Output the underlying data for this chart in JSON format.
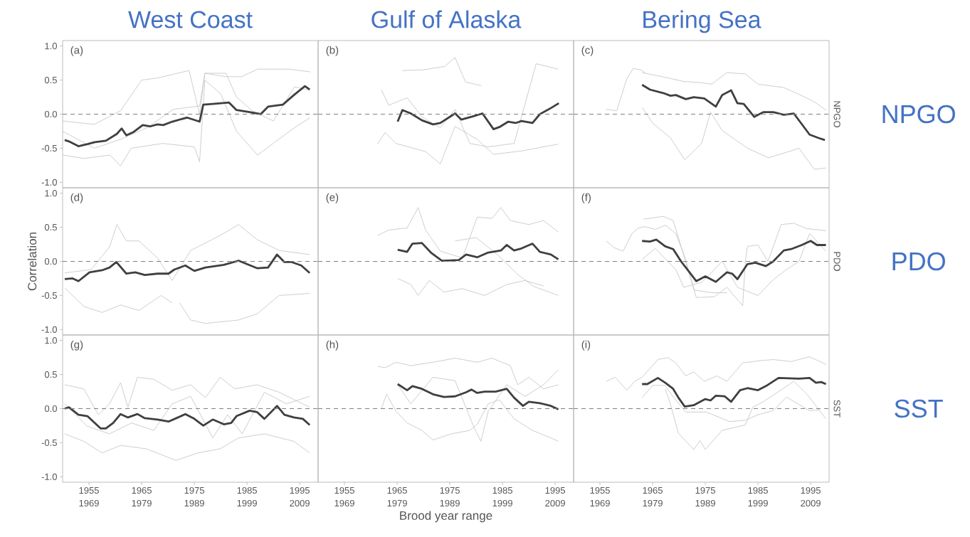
{
  "chart_data": [
    {
      "type": "line",
      "title": "West Coast",
      "annotations": [
        "(a)"
      ],
      "tick_labels": "y",
      "xlim": [
        1950,
        1998.5
      ],
      "ylim": [
        -1.08,
        1.08
      ],
      "line_style": "solid",
      "marker": "none",
      "yticks": [
        {
          "value": -1,
          "label": "-1.0"
        },
        {
          "value": -0.5,
          "label": "-0.5"
        },
        {
          "value": 0,
          "label": "0.0"
        },
        {
          "value": 0.5,
          "label": "0.5"
        },
        {
          "value": 1,
          "label": "1.0"
        }
      ],
      "ref_lines": [
        {
          "axis": "y",
          "value": 0,
          "color": "#808080",
          "line_style": "dashed"
        }
      ],
      "series": [
        {
          "color": "#c8c8c8",
          "x": [
            1950,
            1956,
            1961,
            1965,
            1968,
            1974,
            1976,
            1977,
            1981,
            1983,
            1986,
            1990,
            1994,
            1997
          ],
          "values": [
            -0.1,
            -0.15,
            0.05,
            0.5,
            0.53,
            0.64,
            0.0,
            0.6,
            0.6,
            0.25,
            0.05,
            -0.1,
            0.4,
            0.35
          ]
        },
        {
          "color": "#c8c8c8",
          "x": [
            1950,
            1954,
            1959,
            1961,
            1963,
            1969,
            1975,
            1976,
            1977,
            1980,
            1983,
            1987,
            1991,
            1994,
            1997
          ],
          "values": [
            -0.6,
            -0.65,
            -0.6,
            -0.76,
            -0.5,
            -0.43,
            -0.48,
            -0.7,
            0.5,
            0.3,
            -0.25,
            -0.6,
            -0.37,
            -0.2,
            -0.05
          ]
        },
        {
          "color": "#c8c8c8",
          "x": [
            1950,
            1956,
            1961,
            1966,
            1971,
            1976,
            1977,
            1981,
            1984,
            1987,
            1993,
            1997
          ],
          "values": [
            -0.25,
            -0.5,
            -0.37,
            -0.2,
            0.07,
            0.12,
            0.6,
            0.55,
            0.55,
            0.66,
            0.66,
            0.62
          ]
        },
        {
          "color": "#3f3f3f",
          "x": [
            1950.4,
            1951.2,
            1953.0,
            1954.7,
            1956.1,
            1958.2,
            1960.3,
            1961.2,
            1962.1,
            1963.5,
            1965.2,
            1966.6,
            1968.0,
            1969.1,
            1970.8,
            1973.6,
            1976.0,
            1976.7,
            1978.5,
            1981.6,
            1983.0,
            1985.5,
            1987.6,
            1989.0,
            1991.8,
            1993.9,
            1996.0,
            1996.9
          ],
          "values": [
            -0.38,
            -0.4,
            -0.47,
            -0.44,
            -0.41,
            -0.39,
            -0.29,
            -0.21,
            -0.31,
            -0.26,
            -0.16,
            -0.18,
            -0.15,
            -0.16,
            -0.11,
            -0.05,
            -0.11,
            0.14,
            0.15,
            0.17,
            0.06,
            0.03,
            0.0,
            0.11,
            0.14,
            0.28,
            0.41,
            0.36
          ]
        }
      ]
    },
    {
      "type": "line",
      "title": "Gulf of Alaska",
      "annotations": [
        "(b)"
      ],
      "tick_labels": false,
      "xlim": [
        1950,
        1998.5
      ],
      "ylim": [
        -1.08,
        1.08
      ],
      "line_style": "solid",
      "marker": "none",
      "ref_lines": [
        {
          "axis": "y",
          "value": 0,
          "color": "#808080",
          "line_style": "dashed"
        }
      ],
      "series": [
        {
          "color": "#c8c8c8",
          "x": [
            1966,
            1970,
            1974,
            1976,
            1978,
            1981
          ],
          "values": [
            0.64,
            0.65,
            0.7,
            0.83,
            0.47,
            0.42
          ]
        },
        {
          "color": "#c8c8c8",
          "x": [
            1962,
            1963.4,
            1966.9,
            1969.7,
            1973.2,
            1976,
            1978.8,
            1982.3,
            1987.2,
            1991.4,
            1995.6
          ],
          "values": [
            0.36,
            0.13,
            0.24,
            -0.04,
            -0.2,
            0.07,
            -0.43,
            -0.48,
            -0.43,
            0.74,
            0.66
          ]
        },
        {
          "color": "#c8c8c8",
          "x": [
            1961.3,
            1962.7,
            1964.8,
            1970.4,
            1973.2,
            1976,
            1980.2,
            1983.3,
            1988.6,
            1995.6
          ],
          "values": [
            -0.44,
            -0.27,
            -0.43,
            -0.55,
            -0.73,
            -0.18,
            -0.37,
            -0.59,
            -0.54,
            -0.44
          ]
        },
        {
          "color": "#3f3f3f",
          "x": [
            1965.1,
            1966.0,
            1967.6,
            1969.7,
            1971.8,
            1973.2,
            1976.0,
            1977.2,
            1979.5,
            1981.2,
            1983.3,
            1984.4,
            1986.1,
            1987.5,
            1988.6,
            1990.7,
            1992.1,
            1994.2,
            1995.7
          ],
          "values": [
            -0.11,
            0.06,
            0.01,
            -0.09,
            -0.15,
            -0.13,
            0.01,
            -0.08,
            -0.03,
            0.01,
            -0.22,
            -0.19,
            -0.11,
            -0.13,
            -0.1,
            -0.13,
            0.0,
            0.09,
            0.16
          ]
        }
      ]
    },
    {
      "type": "line",
      "title": "Bering Sea",
      "annotations": [
        "(c)",
        "NPGO"
      ],
      "y2label": "NPGO",
      "tick_labels": false,
      "xlim": [
        1950,
        1998.5
      ],
      "ylim": [
        -1.08,
        1.08
      ],
      "line_style": "solid",
      "marker": "none",
      "ref_lines": [
        {
          "axis": "y",
          "value": 0,
          "color": "#808080",
          "line_style": "dashed"
        }
      ],
      "series": [
        {
          "color": "#c8c8c8",
          "x": [
            1956.2,
            1958.2,
            1960.1,
            1961.3,
            1962.8,
            1963.5
          ],
          "values": [
            0.07,
            0.05,
            0.52,
            0.67,
            0.65,
            0.61
          ]
        },
        {
          "color": "#c8c8c8",
          "x": [
            1963,
            1967.4,
            1970.9,
            1974.3,
            1976.2,
            1979.1,
            1982.6,
            1985,
            1989.9,
            1992.8,
            1995.7,
            1997.9
          ],
          "values": [
            0.61,
            0.54,
            0.48,
            0.46,
            0.44,
            0.61,
            0.59,
            0.44,
            0.39,
            0.29,
            0.18,
            0.06
          ]
        },
        {
          "color": "#c8c8c8",
          "x": [
            1963,
            1965,
            1968.4,
            1971.1,
            1974.3,
            1976,
            1978.2,
            1983,
            1987,
            1990.4,
            1992.8,
            1995.7,
            1997.9
          ],
          "values": [
            0.1,
            -0.13,
            -0.35,
            -0.67,
            -0.43,
            0.03,
            -0.24,
            -0.5,
            -0.64,
            -0.56,
            -0.5,
            -0.81,
            -0.79
          ]
        },
        {
          "color": "#3f3f3f",
          "x": [
            1963.0,
            1964.5,
            1967.0,
            1968.4,
            1969.4,
            1971.3,
            1972.8,
            1974.8,
            1977.0,
            1978.2,
            1979.9,
            1981.1,
            1982.3,
            1984.3,
            1986.0,
            1987.9,
            1989.9,
            1991.8,
            1994.8,
            1996.5,
            1997.7
          ],
          "values": [
            0.43,
            0.36,
            0.31,
            0.27,
            0.28,
            0.22,
            0.25,
            0.23,
            0.11,
            0.28,
            0.35,
            0.16,
            0.15,
            -0.04,
            0.03,
            0.03,
            -0.01,
            0.01,
            -0.3,
            -0.35,
            -0.38
          ]
        }
      ]
    },
    {
      "type": "line",
      "ylabel": "Correlation",
      "annotations": [
        "(d)"
      ],
      "tick_labels": "y",
      "xlim": [
        1950,
        1998.5
      ],
      "ylim": [
        -1.08,
        1.08
      ],
      "line_style": "solid",
      "marker": "none",
      "yticks": [
        {
          "value": -1,
          "label": "-1.0"
        },
        {
          "value": -0.5,
          "label": "-0.5"
        },
        {
          "value": 0,
          "label": "0.0"
        },
        {
          "value": 0.5,
          "label": "0.5"
        },
        {
          "value": 1,
          "label": "1.0"
        }
      ],
      "ref_lines": [
        {
          "axis": "y",
          "value": 0,
          "color": "#808080",
          "line_style": "dashed"
        }
      ],
      "series": [
        {
          "color": "#c8c8c8",
          "x": [
            1950.4,
            1955.4,
            1958.9,
            1960.3,
            1962.1,
            1964.5,
            1968,
            1970.8,
            1974.3,
            1979.9,
            1983.4,
            1986.9,
            1991.1,
            1996.9
          ],
          "values": [
            -0.17,
            -0.12,
            0.21,
            0.54,
            0.3,
            0.3,
            0.05,
            -0.28,
            0.16,
            0.38,
            0.54,
            0.32,
            0.16,
            0.1
          ]
        },
        {
          "color": "#c8c8c8",
          "x": [
            1950.4,
            1954,
            1957.5,
            1961,
            1964.5,
            1968.7,
            1970.8
          ],
          "values": [
            -0.39,
            -0.66,
            -0.75,
            -0.64,
            -0.72,
            -0.5,
            -0.61
          ]
        },
        {
          "color": "#c8c8c8",
          "x": [
            1972.2,
            1974.3,
            1977.1,
            1983.4,
            1986.9,
            1991.1,
            1996.9
          ],
          "values": [
            -0.61,
            -0.86,
            -0.91,
            -0.86,
            -0.77,
            -0.5,
            -0.47
          ]
        },
        {
          "color": "#3f3f3f",
          "x": [
            1950.4,
            1951.9,
            1953,
            1955.1,
            1957.5,
            1958.9,
            1960.2,
            1962.1,
            1963.8,
            1965.6,
            1968,
            1970.1,
            1971.2,
            1973.3,
            1975,
            1977.1,
            1980.6,
            1983.4,
            1986.9,
            1989,
            1990.7,
            1992.1,
            1993.5,
            1995.3,
            1996.9
          ],
          "values": [
            -0.26,
            -0.25,
            -0.29,
            -0.16,
            -0.13,
            -0.09,
            -0.01,
            -0.18,
            -0.16,
            -0.2,
            -0.18,
            -0.18,
            -0.12,
            -0.06,
            -0.14,
            -0.09,
            -0.05,
            0.01,
            -0.1,
            -0.09,
            0.1,
            -0.01,
            -0.01,
            -0.06,
            -0.17
          ]
        }
      ]
    },
    {
      "type": "line",
      "annotations": [
        "(e)"
      ],
      "tick_labels": false,
      "xlim": [
        1950,
        1998.5
      ],
      "ylim": [
        -1.08,
        1.08
      ],
      "line_style": "solid",
      "marker": "none",
      "ref_lines": [
        {
          "axis": "y",
          "value": 0,
          "color": "#808080",
          "line_style": "dashed"
        }
      ],
      "series": [
        {
          "color": "#c8c8c8",
          "x": [
            1961.3,
            1963.4,
            1966.9,
            1969,
            1970.4,
            1973.2,
            1977.4,
            1980.2,
            1983,
            1984.7,
            1986.5,
            1990,
            1992.8,
            1995.6
          ],
          "values": [
            0.38,
            0.46,
            0.49,
            0.79,
            0.46,
            0.15,
            0.05,
            0.65,
            0.63,
            0.79,
            0.6,
            0.54,
            0.6,
            0.43
          ]
        },
        {
          "color": "#c8c8c8",
          "x": [
            1965.1,
            1967.6,
            1969,
            1971.1,
            1973.9,
            1977.4,
            1981.6,
            1985.8,
            1989.3,
            1992.8
          ],
          "values": [
            -0.25,
            -0.34,
            -0.5,
            -0.28,
            -0.45,
            -0.4,
            -0.5,
            -0.34,
            -0.28,
            -0.36
          ]
        },
        {
          "color": "#c8c8c8",
          "x": [
            1976,
            1980,
            1984,
            1988,
            1991,
            1995.6
          ],
          "values": [
            0.3,
            0.35,
            0.1,
            -0.2,
            -0.37,
            -0.5
          ]
        },
        {
          "color": "#3f3f3f",
          "x": [
            1965.1,
            1966.9,
            1967.9,
            1969.7,
            1971.4,
            1973.5,
            1976.7,
            1978.1,
            1980.2,
            1982.3,
            1984.7,
            1985.8,
            1987.2,
            1988.6,
            1990.7,
            1992.1,
            1994.2,
            1995.6
          ],
          "values": [
            0.17,
            0.14,
            0.26,
            0.27,
            0.13,
            0.01,
            0.02,
            0.1,
            0.06,
            0.13,
            0.16,
            0.24,
            0.16,
            0.19,
            0.26,
            0.14,
            0.1,
            0.03
          ]
        }
      ]
    },
    {
      "type": "line",
      "annotations": [
        "(f)",
        "PDO"
      ],
      "y2label": "PDO",
      "tick_labels": false,
      "xlim": [
        1950,
        1998.5
      ],
      "ylim": [
        -1.08,
        1.08
      ],
      "line_style": "solid",
      "marker": "none",
      "ref_lines": [
        {
          "axis": "y",
          "value": 0,
          "color": "#808080",
          "line_style": "dashed"
        }
      ],
      "series": [
        {
          "color": "#c8c8c8",
          "x": [
            1956.2,
            1957.7,
            1959.4,
            1961.1,
            1962.3,
            1963.5,
            1965.5,
            1967.4,
            1969.4,
            1970.9,
            1972.9,
            1976.2,
            1979.1
          ],
          "values": [
            0.3,
            0.2,
            0.15,
            0.41,
            0.49,
            0.51,
            0.47,
            0.53,
            0.41,
            0.11,
            -0.42,
            -0.46,
            -0.46
          ]
        },
        {
          "color": "#c8c8c8",
          "x": [
            1963.3,
            1967,
            1968.9,
            1970.4,
            1973.3,
            1976.7,
            1979.1,
            1982.1,
            1982.6,
            1983,
            1985,
            1986.9,
            1989.4,
            1991.8,
            1994.3,
            1997.9
          ],
          "values": [
            0.62,
            0.66,
            0.6,
            0.22,
            -0.53,
            -0.52,
            -0.38,
            -0.65,
            0.0,
            0.22,
            0.24,
            0.0,
            0.54,
            0.56,
            0.48,
            0.45
          ]
        },
        {
          "color": "#c8c8c8",
          "x": [
            1963,
            1965.5,
            1969.4,
            1970.9,
            1974.3,
            1978.2,
            1981.1,
            1985,
            1987.9,
            1990.4,
            1992.8,
            1994.8,
            1997.9
          ],
          "values": [
            0.03,
            0.19,
            -0.12,
            -0.38,
            -0.31,
            0,
            -0.38,
            -0.5,
            -0.27,
            -0.12,
            0,
            0.41,
            0.15
          ]
        },
        {
          "color": "#3f3f3f",
          "x": [
            1963,
            1964.5,
            1965.7,
            1967.4,
            1968.9,
            1970.4,
            1971.8,
            1973.3,
            1975,
            1977,
            1979.1,
            1980.1,
            1981.1,
            1983,
            1984.5,
            1986.5,
            1987.9,
            1989.9,
            1991.3,
            1993.3,
            1995,
            1996.2,
            1997.9
          ],
          "values": [
            0.3,
            0.29,
            0.32,
            0.22,
            0.18,
            0.0,
            -0.14,
            -0.29,
            -0.22,
            -0.3,
            -0.16,
            -0.18,
            -0.26,
            -0.04,
            -0.02,
            -0.07,
            0.0,
            0.16,
            0.18,
            0.24,
            0.3,
            0.24,
            0.24
          ]
        }
      ]
    },
    {
      "type": "line",
      "annotations": [
        "(g)"
      ],
      "xlim": [
        1950,
        1998.5
      ],
      "x2lim": [
        1964,
        2012.5
      ],
      "ylim": [
        -1.08,
        1.08
      ],
      "line_style": "solid",
      "marker": "none",
      "xticks": [
        1955,
        1965,
        1975,
        1985,
        1995
      ],
      "x2ticks": [
        1969,
        1979,
        1989,
        1999,
        2009
      ],
      "yticks": [
        {
          "value": -1,
          "label": "-1.0"
        },
        {
          "value": -0.5,
          "label": "-0.5"
        },
        {
          "value": 0,
          "label": "0.0"
        },
        {
          "value": 0.5,
          "label": "0.5"
        },
        {
          "value": 1,
          "label": "1.0"
        }
      ],
      "ref_lines": [
        {
          "axis": "y",
          "value": 0,
          "color": "#808080",
          "line_style": "dashed"
        }
      ],
      "series": [
        {
          "color": "#c8c8c8",
          "x": [
            1950.4,
            1954,
            1956.8,
            1958.9,
            1961,
            1962.4,
            1964.2,
            1967.3,
            1970.8,
            1974.3,
            1977.1,
            1979.9,
            1982.7,
            1986.9,
            1991.1,
            1996.9
          ],
          "values": [
            0.35,
            0.29,
            -0.09,
            0.07,
            0.38,
            0.02,
            0.46,
            0.43,
            0.27,
            0.35,
            0.16,
            0.46,
            0.29,
            0.35,
            0.24,
            0.02
          ]
        },
        {
          "color": "#c8c8c8",
          "x": [
            1950.4,
            1954,
            1957.5,
            1961,
            1965.9,
            1971.5,
            1975.7,
            1979.9,
            1983.4,
            1988.3,
            1993.9,
            1996.9
          ],
          "values": [
            -0.37,
            -0.48,
            -0.65,
            -0.54,
            -0.59,
            -0.76,
            -0.65,
            -0.59,
            -0.43,
            -0.37,
            -0.48,
            -0.65
          ]
        },
        {
          "color": "#c8c8c8",
          "x": [
            1950.4,
            1954.7,
            1958.9,
            1963.1,
            1967.3,
            1970.8,
            1974.3,
            1978.5,
            1981.3,
            1984.1,
            1988.3,
            1992.5,
            1996.9
          ],
          "values": [
            0.07,
            -0.26,
            -0.37,
            -0.21,
            -0.32,
            0.07,
            0.18,
            -0.43,
            -0.09,
            -0.37,
            0.24,
            0.07,
            0.18
          ]
        },
        {
          "color": "#3f3f3f",
          "x": [
            1950.4,
            1951.2,
            1953,
            1954.7,
            1957.2,
            1958.2,
            1959.6,
            1961,
            1962.4,
            1964.2,
            1965.6,
            1968,
            1970.1,
            1971.6,
            1973.3,
            1975,
            1976.7,
            1978.5,
            1980.6,
            1982,
            1983,
            1985.5,
            1986.9,
            1988.3,
            1990.7,
            1992.1,
            1993.9,
            1995.6,
            1996.9
          ],
          "values": [
            0,
            0.02,
            -0.09,
            -0.11,
            -0.29,
            -0.29,
            -0.21,
            -0.08,
            -0.13,
            -0.08,
            -0.14,
            -0.16,
            -0.19,
            -0.14,
            -0.08,
            -0.15,
            -0.25,
            -0.16,
            -0.23,
            -0.21,
            -0.11,
            -0.03,
            -0.05,
            -0.15,
            0.04,
            -0.09,
            -0.13,
            -0.15,
            -0.24
          ]
        }
      ]
    },
    {
      "type": "line",
      "xlabel": "Brood year range",
      "annotations": [
        "(h)"
      ],
      "tick_labels": "x",
      "xlim": [
        1950,
        1998.5
      ],
      "x2lim": [
        1964,
        2012.5
      ],
      "ylim": [
        -1.08,
        1.08
      ],
      "line_style": "solid",
      "marker": "none",
      "xticks": [
        1955,
        1965,
        1975,
        1985,
        1995
      ],
      "x2ticks": [
        1969,
        1979,
        1989,
        1999,
        2009
      ],
      "ref_lines": [
        {
          "axis": "y",
          "value": 0,
          "color": "#808080",
          "line_style": "dashed"
        }
      ],
      "series": [
        {
          "color": "#c8c8c8",
          "x": [
            1961.3,
            1962.7,
            1964.8,
            1967.6,
            1971.8,
            1976,
            1980.2,
            1983,
            1986.5,
            1987.9,
            1990,
            1992.8,
            1995.6
          ],
          "values": [
            0.62,
            0.6,
            0.68,
            0.63,
            0.68,
            0.74,
            0.68,
            0.74,
            0.63,
            0.35,
            0.46,
            0.29,
            0.35
          ]
        },
        {
          "color": "#c8c8c8",
          "x": [
            1962,
            1963,
            1964.8,
            1966.9,
            1969.7,
            1971.8,
            1975.3,
            1978.8,
            1980.2,
            1982.3,
            1984.4,
            1987.2,
            1990.7,
            1994.2,
            1995.6
          ],
          "values": [
            0,
            0.21,
            -0.04,
            -0.21,
            -0.32,
            -0.46,
            -0.37,
            -0.32,
            -0.23,
            0.07,
            0.13,
            -0.15,
            -0.32,
            -0.43,
            -0.48
          ]
        },
        {
          "color": "#c8c8c8",
          "x": [
            1965.1,
            1967.6,
            1971.8,
            1976,
            1979.5,
            1980.9,
            1982.3,
            1985.8,
            1989.3,
            1992.8,
            1995.6
          ],
          "values": [
            0.35,
            0.07,
            0.46,
            0.41,
            -0.26,
            -0.48,
            -0.04,
            0.35,
            0.18,
            0.35,
            0.57
          ]
        },
        {
          "color": "#3f3f3f",
          "x": [
            1965.1,
            1966.9,
            1967.9,
            1969.7,
            1971.8,
            1973.9,
            1976,
            1978.1,
            1979.1,
            1980.2,
            1981.6,
            1983.7,
            1985.8,
            1987.2,
            1988.9,
            1990,
            1992.1,
            1994.2,
            1995.6
          ],
          "values": [
            0.36,
            0.27,
            0.33,
            0.29,
            0.21,
            0.17,
            0.18,
            0.24,
            0.28,
            0.23,
            0.25,
            0.25,
            0.29,
            0.16,
            0.04,
            0.1,
            0.08,
            0.04,
            -0.01
          ]
        }
      ]
    },
    {
      "type": "line",
      "annotations": [
        "(i)",
        "SST"
      ],
      "y2label": "SST",
      "tick_labels": "x",
      "xlim": [
        1950,
        1998.5
      ],
      "x2lim": [
        1964,
        2012.5
      ],
      "ylim": [
        -1.08,
        1.08
      ],
      "line_style": "solid",
      "marker": "none",
      "xticks": [
        1955,
        1965,
        1975,
        1985,
        1995
      ],
      "x2ticks": [
        1969,
        1979,
        1989,
        1999,
        2009
      ],
      "ref_lines": [
        {
          "axis": "y",
          "value": 0,
          "color": "#808080",
          "line_style": "dashed"
        }
      ],
      "series": [
        {
          "color": "#c8c8c8",
          "x": [
            1956.2,
            1957.9,
            1960.1,
            1961.6,
            1963,
            1966,
            1967.9,
            1969.4,
            1971.3,
            1972.8,
            1974.8,
            1977.2,
            1979.1,
            1982.1,
            1985,
            1987.9,
            1991.3,
            1994.8,
            1997.9
          ],
          "values": [
            0.4,
            0.46,
            0.27,
            0.4,
            0.46,
            0.72,
            0.75,
            0.67,
            0.48,
            0.54,
            0.4,
            0.48,
            0.4,
            0.67,
            0.7,
            0.72,
            0.69,
            0.76,
            0.65
          ]
        },
        {
          "color": "#c8c8c8",
          "x": [
            1967.4,
            1968.4,
            1969.9,
            1972.8,
            1974,
            1975,
            1978.2,
            1982.6,
            1984,
            1986,
            1988.9,
            1991.8,
            1994.3,
            1997.9
          ],
          "values": [
            0.29,
            0.06,
            -0.36,
            -0.6,
            -0.47,
            -0.6,
            -0.32,
            -0.24,
            0.02,
            0.1,
            0.25,
            0.4,
            0.21,
            -0.15
          ]
        },
        {
          "color": "#c8c8c8",
          "x": [
            1963,
            1965,
            1967.4,
            1968.9,
            1971.3,
            1975.2,
            1979.6,
            1982.6,
            1985,
            1987.9,
            1990.4,
            1992.8,
            1994.8,
            1996.7
          ],
          "values": [
            0.16,
            0.34,
            0.34,
            0.17,
            -0.05,
            -0.05,
            -0.19,
            -0.17,
            -0.09,
            -0.03,
            0.17,
            0.06,
            -0.03,
            -0.02
          ]
        },
        {
          "color": "#3f3f3f",
          "x": [
            1963,
            1964,
            1966,
            1967.4,
            1968.9,
            1969.9,
            1971.1,
            1972.8,
            1975,
            1976,
            1977,
            1978.7,
            1979.9,
            1981.6,
            1983,
            1985,
            1986.5,
            1988.9,
            1992.8,
            1994.8,
            1996,
            1997,
            1997.9
          ],
          "values": [
            0.36,
            0.36,
            0.45,
            0.38,
            0.29,
            0.16,
            0.03,
            0.05,
            0.14,
            0.12,
            0.19,
            0.18,
            0.1,
            0.27,
            0.3,
            0.27,
            0.33,
            0.45,
            0.44,
            0.45,
            0.38,
            0.39,
            0.36
          ]
        }
      ]
    }
  ]
}
